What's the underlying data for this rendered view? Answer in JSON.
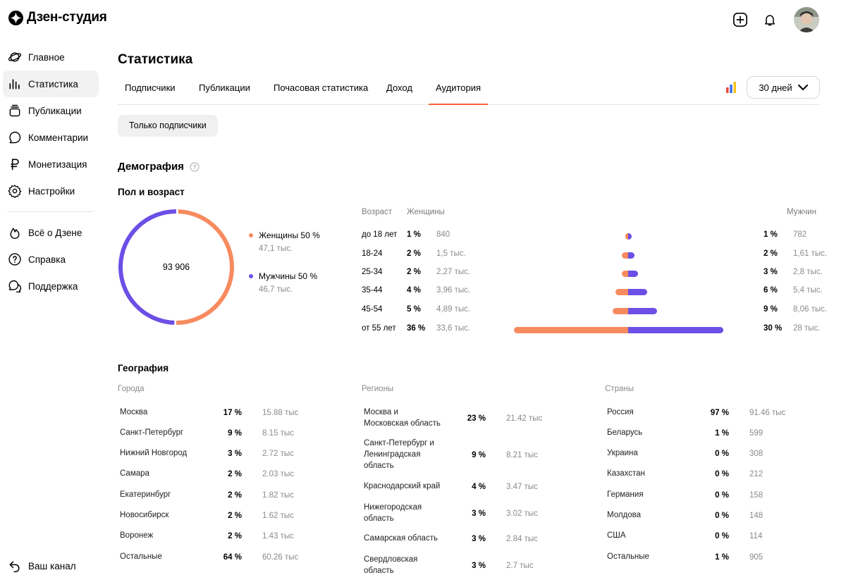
{
  "app": {
    "title": "Дзен-студия"
  },
  "sidebar": {
    "items": [
      {
        "label": "Главное",
        "icon": "planet-icon"
      },
      {
        "label": "Статистика",
        "icon": "bars-icon"
      },
      {
        "label": "Публикации",
        "icon": "stack-icon"
      },
      {
        "label": "Комментарии",
        "icon": "comment-icon"
      },
      {
        "label": "Монетизация",
        "icon": "ruble-icon"
      },
      {
        "label": "Настройки",
        "icon": "gear-icon"
      }
    ],
    "secondary": [
      {
        "label": "Всё о Дзене",
        "icon": "flame-icon"
      },
      {
        "label": "Справка",
        "icon": "help-icon"
      },
      {
        "label": "Поддержка",
        "icon": "chat-icon"
      }
    ],
    "bottom": {
      "label": "Ваш канал",
      "icon": "back-arrow-icon"
    }
  },
  "page": {
    "title": "Статистика",
    "tabs": [
      "Подписчики",
      "Публикации",
      "Почасовая статистика",
      "Доход",
      "Аудитория"
    ],
    "active_tab": "Аудитория",
    "period": "30 дней",
    "filter_chip": "Только подписчики"
  },
  "demography": {
    "title": "Демография",
    "subtitle": "Пол и возраст",
    "total": "93 906",
    "women": {
      "label": "Женщины 50 %",
      "count": "47,1 тыс.",
      "share": 0.5,
      "color": "#f78b5f"
    },
    "men": {
      "label": "Мужчины 50 %",
      "count": "46,7 тыс.",
      "share": 0.5,
      "color": "#6c4fe6"
    },
    "headers": {
      "age": "Возраст",
      "women": "Женщины",
      "men": "Мужчин"
    },
    "rows": [
      {
        "age": "до 18 лет",
        "f_pct": "1 %",
        "f_val": "840",
        "m_pct": "1 %",
        "m_val": "782",
        "f": 1,
        "m": 1
      },
      {
        "age": "18-24",
        "f_pct": "2 %",
        "f_val": "1,5 тыс.",
        "m_pct": "2 %",
        "m_val": "1,61 тыс.",
        "f": 2,
        "m": 2
      },
      {
        "age": "25-34",
        "f_pct": "2 %",
        "f_val": "2,27 тыс.",
        "m_pct": "3 %",
        "m_val": "2,8 тыс.",
        "f": 2,
        "m": 3
      },
      {
        "age": "35-44",
        "f_pct": "4 %",
        "f_val": "3,96 тыс.",
        "m_pct": "6 %",
        "m_val": "5,4 тыс.",
        "f": 4,
        "m": 6
      },
      {
        "age": "45-54",
        "f_pct": "5 %",
        "f_val": "4,89 тыс.",
        "m_pct": "9 %",
        "m_val": "8,06 тыс.",
        "f": 5,
        "m": 9
      },
      {
        "age": "от 55 лет",
        "f_pct": "36 %",
        "f_val": "33,6 тыс.",
        "m_pct": "30 %",
        "m_val": "28 тыс.",
        "f": 36,
        "m": 30
      }
    ]
  },
  "geography": {
    "title": "География",
    "cities": {
      "title": "Города",
      "rows": [
        {
          "name": "Москва",
          "pct": "17 %",
          "val": "15.88 тыс"
        },
        {
          "name": "Санкт-Петербург",
          "pct": "9 %",
          "val": "8.15 тыс"
        },
        {
          "name": "Нижний Новгород",
          "pct": "3 %",
          "val": "2.72 тыс"
        },
        {
          "name": "Самара",
          "pct": "2 %",
          "val": "2.03 тыс"
        },
        {
          "name": "Екатеринбург",
          "pct": "2 %",
          "val": "1.82 тыс"
        },
        {
          "name": "Новосибирск",
          "pct": "2 %",
          "val": "1.62 тыс"
        },
        {
          "name": "Воронеж",
          "pct": "2 %",
          "val": "1.43 тыс"
        },
        {
          "name": "Остальные",
          "pct": "64 %",
          "val": "60.26 тыс"
        }
      ]
    },
    "regions": {
      "title": "Регионы",
      "rows": [
        {
          "name": "Москва и\nМосковская область",
          "pct": "23 %",
          "val": "21.42 тыс"
        },
        {
          "name": "Санкт-Петербург и\nЛенинградская\nобласть",
          "pct": "9 %",
          "val": "8.21 тыс"
        },
        {
          "name": "Краснодарский край",
          "pct": "4 %",
          "val": "3.47 тыс"
        },
        {
          "name": "Нижегородская\nобласть",
          "pct": "3 %",
          "val": "3.02 тыс"
        },
        {
          "name": "Самарская область",
          "pct": "3 %",
          "val": "2.84 тыс"
        },
        {
          "name": "Свердловская\nобласть",
          "pct": "3 %",
          "val": "2.7 тыс"
        }
      ]
    },
    "countries": {
      "title": "Страны",
      "rows": [
        {
          "name": "Россия",
          "pct": "97 %",
          "val": "91.46 тыс"
        },
        {
          "name": "Беларусь",
          "pct": "1 %",
          "val": "599"
        },
        {
          "name": "Украина",
          "pct": "0 %",
          "val": "308"
        },
        {
          "name": "Казахстан",
          "pct": "0 %",
          "val": "212"
        },
        {
          "name": "Германия",
          "pct": "0 %",
          "val": "158"
        },
        {
          "name": "Молдова",
          "pct": "0 %",
          "val": "148"
        },
        {
          "name": "США",
          "pct": "0 %",
          "val": "114"
        },
        {
          "name": "Остальные",
          "pct": "1 %",
          "val": "905"
        }
      ]
    }
  }
}
